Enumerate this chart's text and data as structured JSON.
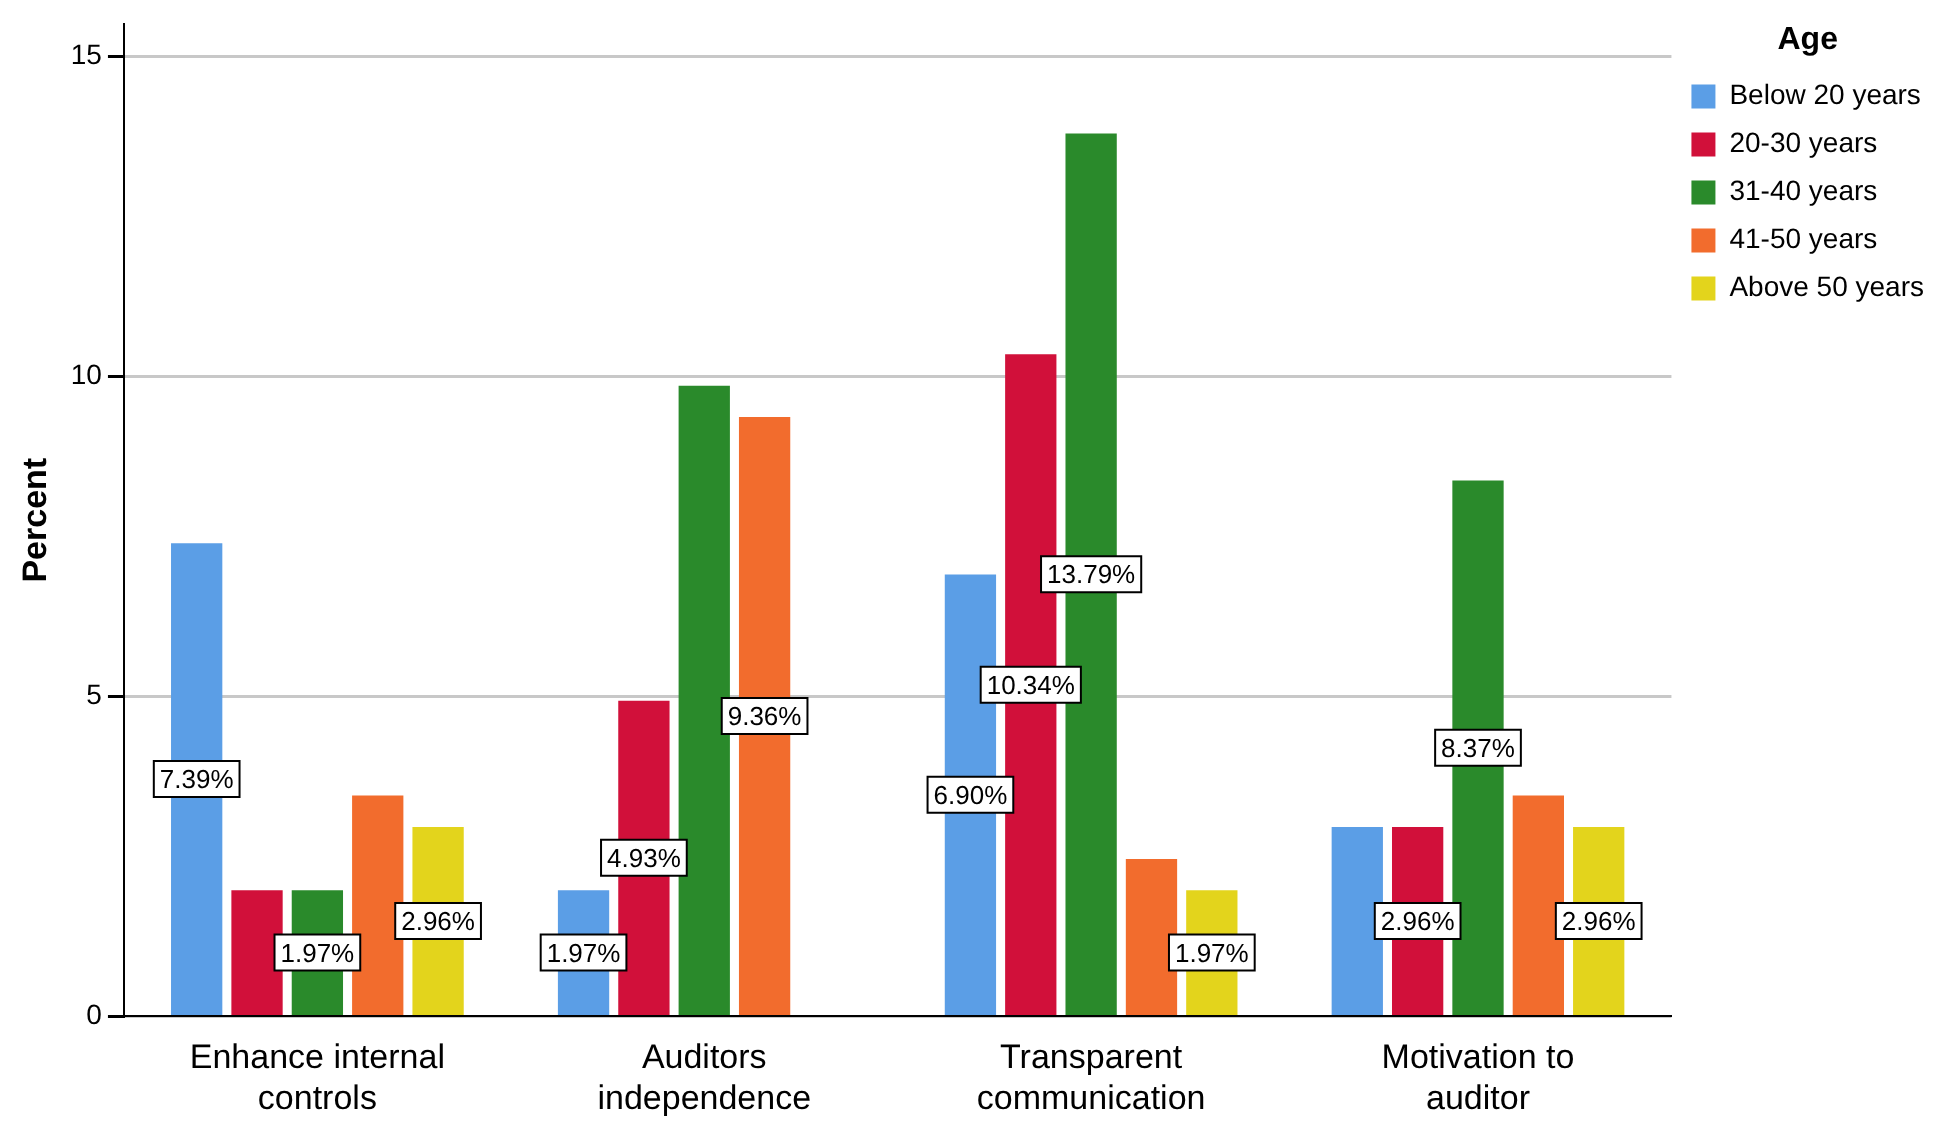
{
  "chart_data": {
    "type": "bar",
    "ylabel": "Percent",
    "legend_title": "Age",
    "categories": [
      "Enhance internal controls",
      "Auditors independence",
      "Transparent communication",
      "Motivation to auditor"
    ],
    "series": [
      {
        "name": "Below 20 years",
        "color": "#5b9ee6",
        "values": [
          7.39,
          1.97,
          6.9,
          2.96
        ],
        "value_labels": [
          "7.39%",
          "1.97%",
          "6.90%",
          null
        ]
      },
      {
        "name": "20-30 years",
        "color": "#d1103a",
        "values": [
          1.97,
          4.93,
          10.34,
          2.96
        ],
        "value_labels": [
          null,
          "4.93%",
          "10.34%",
          "2.96%"
        ]
      },
      {
        "name": "31-40 years",
        "color": "#2a8a2b",
        "values": [
          1.97,
          9.85,
          13.79,
          8.37
        ],
        "value_labels": [
          "1.97%",
          null,
          "13.79%",
          "8.37%"
        ]
      },
      {
        "name": "41-50 years",
        "color": "#f26c2d",
        "values": [
          3.45,
          9.36,
          2.46,
          3.45
        ],
        "value_labels": [
          null,
          "9.36%",
          null,
          null
        ]
      },
      {
        "name": "Above 50 years",
        "color": "#e3d41c",
        "values": [
          2.96,
          null,
          1.97,
          2.96
        ],
        "value_labels": [
          "2.96%",
          null,
          "1.97%",
          "2.96%"
        ]
      }
    ],
    "ylim": [
      0,
      15.5
    ],
    "yticks": [
      0,
      5,
      10,
      15
    ],
    "grid": "y",
    "legend": "top right"
  }
}
